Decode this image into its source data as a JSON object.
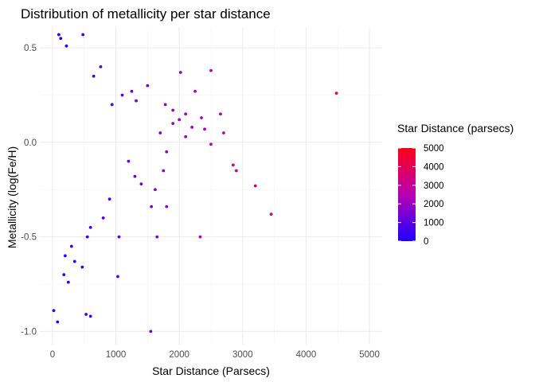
{
  "chart_data": {
    "type": "scatter",
    "title": "Distribution of metallicity per star distance",
    "xlabel": "Star Distance (Parsecs)",
    "ylabel": "Metallicity (log(Fe/H)",
    "xlim": [
      -200,
      5200
    ],
    "ylim": [
      -1.07,
      0.61
    ],
    "x_ticks": [
      0,
      1000,
      2000,
      3000,
      4000,
      5000
    ],
    "y_ticks": [
      -1.0,
      -0.5,
      0.0,
      0.5
    ],
    "x_tick_labels": [
      "0",
      "1000",
      "2000",
      "3000",
      "4000",
      "5000"
    ],
    "y_tick_labels": [
      "-1.0",
      "-0.5",
      "0.0",
      "0.5"
    ],
    "grid": true,
    "color_scale": {
      "title": "Star Distance (parsecs)",
      "min": 0,
      "max": 5000,
      "low_color": "#1d00ff",
      "high_color": "#ff0018",
      "breaks": [
        0,
        1000,
        2000,
        3000,
        4000,
        5000
      ],
      "break_labels": [
        "0",
        "1000",
        "2000",
        "3000",
        "4000",
        "5000"
      ]
    },
    "legend_position": "right",
    "points": [
      [
        4480,
        0.26
      ],
      [
        2500,
        0.38
      ],
      [
        2020,
        0.37
      ],
      [
        1500,
        0.3
      ],
      [
        2250,
        0.27
      ],
      [
        2650,
        0.15
      ],
      [
        2350,
        0.13
      ],
      [
        2500,
        -0.01
      ],
      [
        2900,
        -0.15
      ],
      [
        3200,
        -0.23
      ],
      [
        3450,
        -0.38
      ],
      [
        2850,
        -0.12
      ],
      [
        2700,
        0.05
      ],
      [
        2400,
        0.07
      ],
      [
        2200,
        0.08
      ],
      [
        2100,
        0.03
      ],
      [
        1900,
        0.1
      ],
      [
        1800,
        -0.05
      ],
      [
        1750,
        -0.15
      ],
      [
        1620,
        -0.25
      ],
      [
        1560,
        -0.34
      ],
      [
        1800,
        -0.34
      ],
      [
        1650,
        -0.5
      ],
      [
        2330,
        -0.5
      ],
      [
        1050,
        -0.5
      ],
      [
        1030,
        -0.71
      ],
      [
        1550,
        -1.0
      ],
      [
        600,
        -0.92
      ],
      [
        530,
        -0.91
      ],
      [
        20,
        -0.89
      ],
      [
        80,
        -0.95
      ],
      [
        250,
        -0.74
      ],
      [
        180,
        -0.7
      ],
      [
        350,
        -0.63
      ],
      [
        470,
        -0.66
      ],
      [
        480,
        0.57
      ],
      [
        100,
        0.57
      ],
      [
        220,
        0.51
      ],
      [
        130,
        0.55
      ],
      [
        760,
        0.4
      ],
      [
        650,
        0.35
      ],
      [
        1100,
        0.25
      ],
      [
        1250,
        0.27
      ],
      [
        940,
        0.2
      ],
      [
        1320,
        0.22
      ],
      [
        1780,
        0.2
      ],
      [
        1900,
        0.17
      ],
      [
        2100,
        0.15
      ],
      [
        2000,
        0.12
      ],
      [
        1700,
        0.05
      ],
      [
        1200,
        -0.1
      ],
      [
        1300,
        -0.18
      ],
      [
        1400,
        -0.22
      ],
      [
        900,
        -0.3
      ],
      [
        800,
        -0.4
      ],
      [
        600,
        -0.45
      ],
      [
        550,
        -0.5
      ],
      [
        300,
        -0.55
      ],
      [
        200,
        -0.6
      ]
    ]
  }
}
